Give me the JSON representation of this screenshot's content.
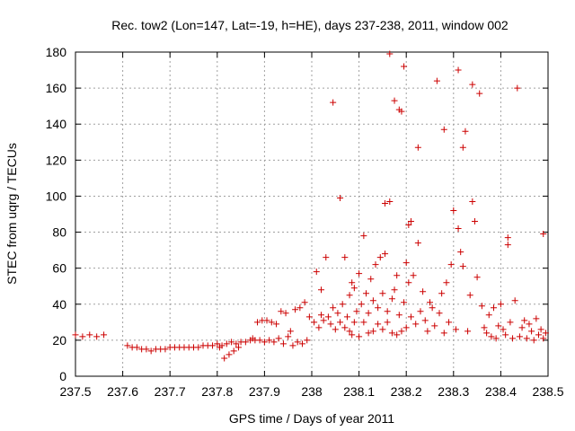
{
  "chart_data": {
    "type": "scatter",
    "title": "Rec. tow2 (Lon=147, Lat=-19, h=HE), days 237-238, 2011, window 002",
    "xlabel": "GPS time / Days of year 2011",
    "ylabel": "STEC from uqrg / TECUs",
    "xlim": [
      237.5,
      238.5
    ],
    "ylim": [
      0,
      180
    ],
    "xticks": [
      "237.5",
      "237.6",
      "237.7",
      "237.8",
      "237.9",
      "238",
      "238.1",
      "238.2",
      "238.3",
      "238.4",
      "238.5"
    ],
    "yticks": [
      "0",
      "20",
      "40",
      "60",
      "80",
      "100",
      "120",
      "140",
      "160",
      "180"
    ],
    "grid": true,
    "marker": "+",
    "color": "#cc0000",
    "series": [
      {
        "name": "STEC",
        "points": [
          [
            237.5,
            23
          ],
          [
            237.515,
            22
          ],
          [
            237.53,
            23
          ],
          [
            237.545,
            22
          ],
          [
            237.56,
            23
          ],
          [
            237.61,
            17
          ],
          [
            237.62,
            16
          ],
          [
            237.63,
            16
          ],
          [
            237.64,
            15
          ],
          [
            237.65,
            15
          ],
          [
            237.66,
            14
          ],
          [
            237.67,
            15
          ],
          [
            237.68,
            15
          ],
          [
            237.69,
            15
          ],
          [
            237.7,
            16
          ],
          [
            237.71,
            16
          ],
          [
            237.72,
            16
          ],
          [
            237.73,
            16
          ],
          [
            237.74,
            16
          ],
          [
            237.75,
            16
          ],
          [
            237.76,
            16
          ],
          [
            237.77,
            17
          ],
          [
            237.78,
            17
          ],
          [
            237.79,
            17
          ],
          [
            237.8,
            18
          ],
          [
            237.805,
            16
          ],
          [
            237.81,
            17
          ],
          [
            237.815,
            10
          ],
          [
            237.82,
            18
          ],
          [
            237.825,
            12
          ],
          [
            237.83,
            19
          ],
          [
            237.835,
            14
          ],
          [
            237.84,
            18
          ],
          [
            237.845,
            16
          ],
          [
            237.85,
            19
          ],
          [
            237.86,
            19
          ],
          [
            237.87,
            20
          ],
          [
            237.875,
            21
          ],
          [
            237.88,
            20
          ],
          [
            237.885,
            30
          ],
          [
            237.89,
            20
          ],
          [
            237.895,
            31
          ],
          [
            237.9,
            19
          ],
          [
            237.905,
            31
          ],
          [
            237.91,
            20
          ],
          [
            237.915,
            30
          ],
          [
            237.92,
            19
          ],
          [
            237.925,
            29
          ],
          [
            237.93,
            21
          ],
          [
            237.935,
            36
          ],
          [
            237.94,
            18
          ],
          [
            237.945,
            35
          ],
          [
            237.95,
            22
          ],
          [
            237.955,
            25
          ],
          [
            237.96,
            17
          ],
          [
            237.965,
            37
          ],
          [
            237.97,
            19
          ],
          [
            237.975,
            38
          ],
          [
            237.98,
            18
          ],
          [
            237.985,
            41
          ],
          [
            237.99,
            20
          ],
          [
            237.995,
            33
          ],
          [
            238.005,
            30
          ],
          [
            238.01,
            58
          ],
          [
            238.015,
            27
          ],
          [
            238.02,
            34
          ],
          [
            238.02,
            48
          ],
          [
            238.025,
            31
          ],
          [
            238.03,
            66
          ],
          [
            238.035,
            33
          ],
          [
            238.04,
            29
          ],
          [
            238.045,
            38
          ],
          [
            238.045,
            152
          ],
          [
            238.05,
            26
          ],
          [
            238.055,
            35
          ],
          [
            238.06,
            99
          ],
          [
            238.06,
            30
          ],
          [
            238.065,
            40
          ],
          [
            238.07,
            27
          ],
          [
            238.07,
            66
          ],
          [
            238.075,
            33
          ],
          [
            238.08,
            45
          ],
          [
            238.08,
            25
          ],
          [
            238.085,
            52
          ],
          [
            238.085,
            23
          ],
          [
            238.09,
            30
          ],
          [
            238.09,
            49
          ],
          [
            238.095,
            36
          ],
          [
            238.1,
            22
          ],
          [
            238.1,
            57
          ],
          [
            238.105,
            40
          ],
          [
            238.11,
            78
          ],
          [
            238.11,
            30
          ],
          [
            238.115,
            46
          ],
          [
            238.12,
            24
          ],
          [
            238.12,
            35
          ],
          [
            238.125,
            54
          ],
          [
            238.13,
            25
          ],
          [
            238.13,
            42
          ],
          [
            238.135,
            62
          ],
          [
            238.14,
            29
          ],
          [
            238.14,
            38
          ],
          [
            238.145,
            66
          ],
          [
            238.15,
            26
          ],
          [
            238.15,
            46
          ],
          [
            238.155,
            68
          ],
          [
            238.155,
            96
          ],
          [
            238.16,
            30
          ],
          [
            238.16,
            36
          ],
          [
            238.165,
            97
          ],
          [
            238.165,
            179
          ],
          [
            238.17,
            24
          ],
          [
            238.17,
            43
          ],
          [
            238.175,
            48
          ],
          [
            238.175,
            153
          ],
          [
            238.18,
            23
          ],
          [
            238.18,
            56
          ],
          [
            238.185,
            148
          ],
          [
            238.185,
            34
          ],
          [
            238.19,
            25
          ],
          [
            238.19,
            147
          ],
          [
            238.195,
            41
          ],
          [
            238.195,
            172
          ],
          [
            238.2,
            27
          ],
          [
            238.2,
            63
          ],
          [
            238.205,
            52
          ],
          [
            238.205,
            84
          ],
          [
            238.21,
            33
          ],
          [
            238.21,
            86
          ],
          [
            238.215,
            56
          ],
          [
            238.22,
            29
          ],
          [
            238.225,
            74
          ],
          [
            238.225,
            127
          ],
          [
            238.23,
            36
          ],
          [
            238.235,
            47
          ],
          [
            238.24,
            31
          ],
          [
            238.245,
            25
          ],
          [
            238.25,
            41
          ],
          [
            238.255,
            38
          ],
          [
            238.26,
            28
          ],
          [
            238.265,
            164
          ],
          [
            238.27,
            35
          ],
          [
            238.275,
            46
          ],
          [
            238.28,
            137
          ],
          [
            238.28,
            24
          ],
          [
            238.285,
            52
          ],
          [
            238.29,
            30
          ],
          [
            238.295,
            62
          ],
          [
            238.3,
            92
          ],
          [
            238.305,
            26
          ],
          [
            238.31,
            170
          ],
          [
            238.31,
            82
          ],
          [
            238.315,
            69
          ],
          [
            238.32,
            127
          ],
          [
            238.32,
            61
          ],
          [
            238.325,
            136
          ],
          [
            238.33,
            25
          ],
          [
            238.335,
            45
          ],
          [
            238.34,
            162
          ],
          [
            238.34,
            97
          ],
          [
            238.345,
            86
          ],
          [
            238.35,
            55
          ],
          [
            238.355,
            157
          ],
          [
            238.36,
            39
          ],
          [
            238.365,
            27
          ],
          [
            238.37,
            24
          ],
          [
            238.375,
            34
          ],
          [
            238.38,
            22
          ],
          [
            238.385,
            38
          ],
          [
            238.39,
            21
          ],
          [
            238.395,
            28
          ],
          [
            238.4,
            40
          ],
          [
            238.405,
            26
          ],
          [
            238.41,
            23
          ],
          [
            238.415,
            77
          ],
          [
            238.415,
            73
          ],
          [
            238.42,
            30
          ],
          [
            238.425,
            21
          ],
          [
            238.43,
            42
          ],
          [
            238.435,
            160
          ],
          [
            238.44,
            22
          ],
          [
            238.445,
            27
          ],
          [
            238.45,
            31
          ],
          [
            238.455,
            21
          ],
          [
            238.46,
            29
          ],
          [
            238.465,
            25
          ],
          [
            238.47,
            20
          ],
          [
            238.475,
            32
          ],
          [
            238.48,
            23
          ],
          [
            238.485,
            26
          ],
          [
            238.49,
            79
          ],
          [
            238.49,
            21
          ],
          [
            238.495,
            24
          ]
        ]
      }
    ]
  }
}
